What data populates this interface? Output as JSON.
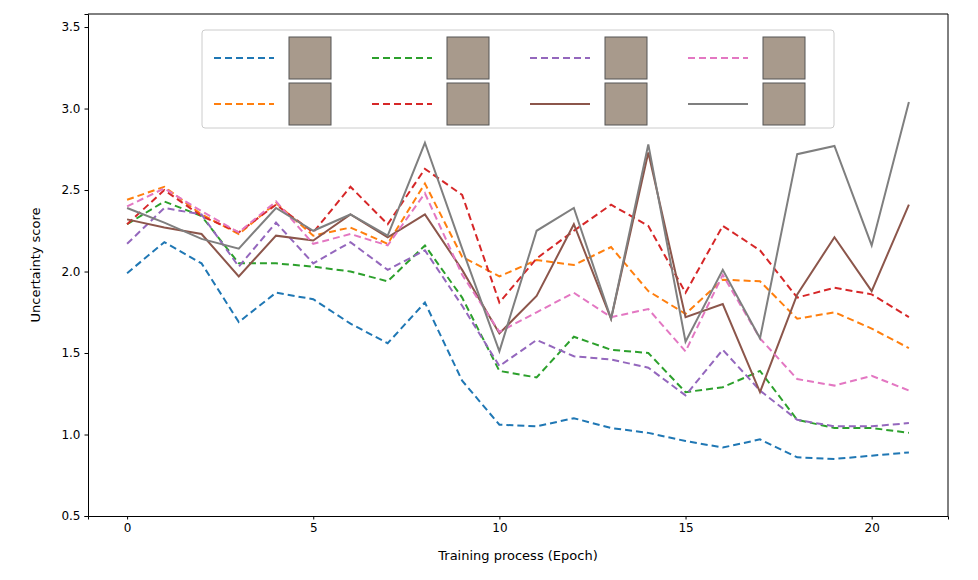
{
  "chart_data": {
    "type": "line",
    "x_label": "Training process (Epoch)",
    "y_label": "Uncertainty score",
    "x": [
      0,
      1,
      2,
      3,
      4,
      5,
      6,
      7,
      8,
      9,
      10,
      11,
      12,
      13,
      14,
      15,
      16,
      17,
      18,
      19,
      20,
      21
    ],
    "xlim": [
      -1.05,
      22.05
    ],
    "xticks": [
      0,
      5,
      10,
      15,
      20
    ],
    "ylim": [
      0.5,
      3.58
    ],
    "yticks": [
      0.5,
      {
        "value": 1,
        "label": "1.0"
      },
      1.5,
      {
        "value": 2,
        "label": "2.0"
      },
      2.5,
      {
        "value": 3,
        "label": "3.0"
      },
      3.5
    ],
    "grid": false,
    "legend": "upper center",
    "series": [
      {
        "color": "#1f77b4",
        "line_style": "dashed",
        "values": [
          1.99,
          2.18,
          2.05,
          1.69,
          1.87,
          1.83,
          1.68,
          1.56,
          1.81,
          1.33,
          1.06,
          1.05,
          1.1,
          1.04,
          1.01,
          0.96,
          0.92,
          0.97,
          0.86,
          0.85,
          0.87,
          0.89
        ]
      },
      {
        "color": "#ff7f0e",
        "line_style": "dashed",
        "values": [
          2.44,
          2.52,
          2.35,
          2.23,
          2.42,
          2.22,
          2.27,
          2.17,
          2.54,
          2.09,
          1.97,
          2.07,
          2.04,
          2.15,
          1.88,
          1.74,
          1.95,
          1.94,
          1.71,
          1.75,
          1.65,
          1.53
        ]
      },
      {
        "color": "#2ca02c",
        "line_style": "dashed",
        "values": [
          2.29,
          2.43,
          2.34,
          2.05,
          2.05,
          2.03,
          2.0,
          1.94,
          2.16,
          1.84,
          1.39,
          1.35,
          1.6,
          1.52,
          1.5,
          1.26,
          1.29,
          1.39,
          1.09,
          1.04,
          1.04,
          1.01
        ]
      },
      {
        "color": "#d62728",
        "line_style": "dashed",
        "values": [
          2.29,
          2.5,
          2.34,
          2.24,
          2.41,
          2.24,
          2.52,
          2.29,
          2.63,
          2.47,
          1.81,
          2.08,
          2.25,
          2.41,
          2.28,
          1.87,
          2.28,
          2.13,
          1.84,
          1.9,
          1.86,
          1.72
        ]
      },
      {
        "color": "#9467bd",
        "line_style": "dashed",
        "values": [
          2.17,
          2.39,
          2.35,
          2.03,
          2.3,
          2.05,
          2.18,
          2.01,
          2.13,
          1.79,
          1.42,
          1.58,
          1.48,
          1.46,
          1.41,
          1.24,
          1.52,
          1.27,
          1.09,
          1.05,
          1.05,
          1.07
        ]
      },
      {
        "color": "#8c564b",
        "line_style": "solid",
        "values": [
          2.32,
          2.27,
          2.23,
          1.97,
          2.22,
          2.19,
          2.35,
          2.21,
          2.35,
          2.01,
          1.62,
          1.85,
          2.29,
          1.71,
          2.73,
          1.72,
          1.8,
          1.26,
          1.86,
          2.21,
          1.88,
          2.41
        ]
      },
      {
        "color": "#e377c2",
        "line_style": "dashed",
        "values": [
          2.4,
          2.51,
          2.37,
          2.24,
          2.43,
          2.17,
          2.23,
          2.16,
          2.48,
          1.98,
          1.63,
          1.75,
          1.87,
          1.72,
          1.77,
          1.51,
          1.98,
          1.59,
          1.34,
          1.3,
          1.36,
          1.27
        ]
      },
      {
        "color": "#7f7f7f",
        "line_style": "solid",
        "values": [
          2.39,
          2.3,
          2.2,
          2.14,
          2.39,
          2.25,
          2.35,
          2.22,
          2.79,
          2.14,
          1.51,
          2.25,
          2.39,
          1.71,
          2.78,
          1.57,
          2.01,
          1.59,
          2.72,
          2.77,
          2.16,
          3.04
        ]
      }
    ]
  }
}
